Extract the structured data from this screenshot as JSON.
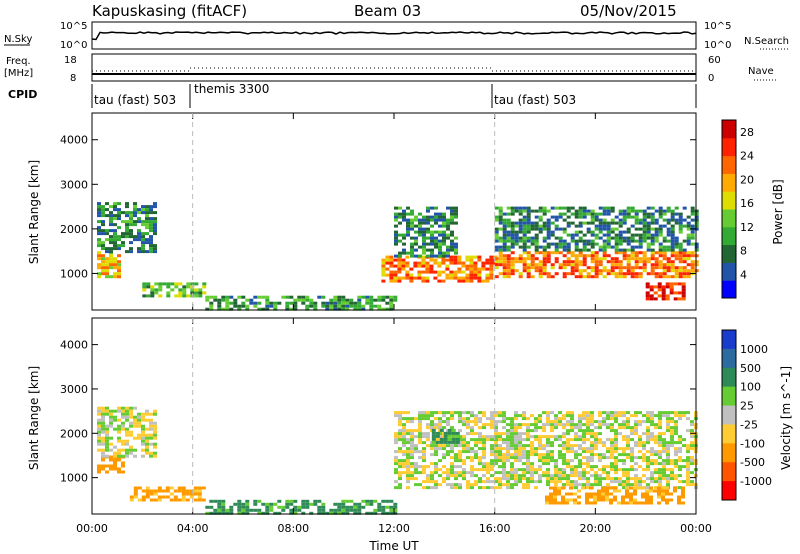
{
  "header": {
    "station": "Kapuskasing (fitACF)",
    "beam": "Beam 03",
    "date": "05/Nov/2015"
  },
  "panels": {
    "nsky": {
      "left_label": "N.Sky",
      "ticks_left": [
        "10^5",
        "10^0"
      ],
      "ticks_right": [
        "10^5",
        "10^0"
      ],
      "right_label": "N.Search"
    },
    "freq": {
      "left_label_line1": "Freq.",
      "left_label_line2": "[MHz]",
      "ticks_left": [
        "18",
        "8"
      ],
      "ticks_right": [
        "60",
        "0"
      ],
      "right_label": "Nave"
    },
    "cpid": {
      "label": "CPID",
      "modes": [
        {
          "label": "tau (fast) 503",
          "start": "00:00",
          "end": "04:00"
        },
        {
          "label": "themis 3300",
          "start": "04:00",
          "end": "16:00"
        },
        {
          "label": "tau (fast) 503",
          "start": "16:00",
          "end": "24:00"
        }
      ]
    }
  },
  "axes": {
    "y_label": "Slant Range [km]",
    "y_ticks": [
      "1000",
      "2000",
      "3000",
      "4000"
    ],
    "x_label": "Time UT",
    "x_ticks": [
      "00:00",
      "04:00",
      "08:00",
      "12:00",
      "16:00",
      "20:00",
      "00:00"
    ]
  },
  "colorbars": {
    "power": {
      "title": "Power [dB]",
      "ticks": [
        "4",
        "8",
        "12",
        "16",
        "20",
        "24",
        "28"
      ],
      "colors": [
        "#0000ff",
        "#2255aa",
        "#226633",
        "#33aa33",
        "#66cc33",
        "#dddd00",
        "#ffaa00",
        "#ff6600",
        "#ff2200",
        "#cc0000"
      ]
    },
    "velocity": {
      "title": "Velocity [m s^-1]",
      "ticks": [
        "1000",
        "500",
        "100",
        "25",
        "-25",
        "-100",
        "-500",
        "-1000"
      ],
      "colors": [
        "#1a3ccc",
        "#2d6aa0",
        "#2e8b57",
        "#66cc33",
        "#c0c0c0",
        "#ffcc33",
        "#ff9900",
        "#ff5500",
        "#ff0000"
      ]
    }
  },
  "chart_data": [
    {
      "type": "heatmap",
      "title": "Power [dB]",
      "xlabel": "Time UT",
      "ylabel": "Slant Range [km]",
      "xlim": [
        0,
        24
      ],
      "ylim": [
        180,
        4600
      ],
      "regions": [
        {
          "t0": 0.2,
          "t1": 1.0,
          "r0": 900,
          "r1": 1500,
          "value": 20
        },
        {
          "t0": 0.2,
          "t1": 2.5,
          "r0": 1500,
          "r1": 2600,
          "value": 10
        },
        {
          "t0": 2.0,
          "t1": 4.5,
          "r0": 500,
          "r1": 800,
          "value": 14
        },
        {
          "t0": 4.5,
          "t1": 12.0,
          "r0": 200,
          "r1": 500,
          "value": 12
        },
        {
          "t0": 11.5,
          "t1": 16.0,
          "r0": 800,
          "r1": 1400,
          "value": 24
        },
        {
          "t0": 12.0,
          "t1": 14.5,
          "r0": 1400,
          "r1": 2500,
          "value": 10
        },
        {
          "t0": 16.0,
          "t1": 24.0,
          "r0": 900,
          "r1": 1500,
          "value": 24
        },
        {
          "t0": 16.0,
          "t1": 24.0,
          "r0": 1500,
          "r1": 2500,
          "value": 10
        },
        {
          "t0": 22.0,
          "t1": 23.5,
          "r0": 400,
          "r1": 800,
          "value": 28
        }
      ]
    },
    {
      "type": "heatmap",
      "title": "Velocity [m s^-1]",
      "xlabel": "Time UT",
      "ylabel": "Slant Range [km]",
      "xlim": [
        0,
        24
      ],
      "ylim": [
        180,
        4600
      ],
      "regions": [
        {
          "t0": 0.2,
          "t1": 1.2,
          "r0": 1100,
          "r1": 1500,
          "value": -300
        },
        {
          "t0": 0.2,
          "t1": 2.5,
          "r0": 1500,
          "r1": 2600,
          "value": 0
        },
        {
          "t0": 1.5,
          "t1": 4.5,
          "r0": 500,
          "r1": 800,
          "value": -150
        },
        {
          "t0": 4.5,
          "t1": 12.0,
          "r0": 200,
          "r1": 500,
          "value": 150
        },
        {
          "t0": 12.0,
          "t1": 24.0,
          "r0": 800,
          "r1": 2500,
          "value": 0
        },
        {
          "t0": 13.5,
          "t1": 14.5,
          "r0": 1800,
          "r1": 2100,
          "value": 150
        },
        {
          "t0": 18.0,
          "t1": 23.5,
          "r0": 400,
          "r1": 800,
          "value": -150
        }
      ]
    }
  ]
}
